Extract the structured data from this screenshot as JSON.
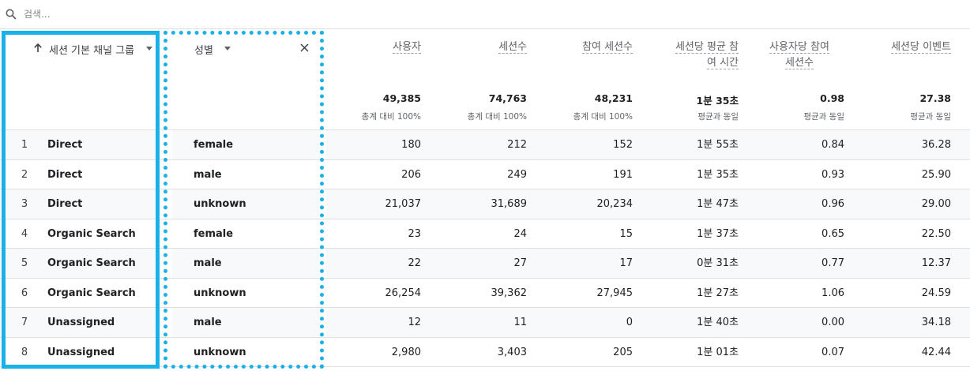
{
  "search": {
    "placeholder": "검색..."
  },
  "colors": {
    "accent": "#1ab0e8",
    "row_shade": "#f8f9fa",
    "border": "#e0e0e0"
  },
  "dimensions": {
    "primary": {
      "label": "세션 기본 채널 그룹",
      "sort_icon": "arrow-up-icon",
      "dropdown_icon": "caret-down-icon"
    },
    "secondary": {
      "label": "성별",
      "dropdown_icon": "caret-down-icon",
      "remove_icon": "close-icon"
    }
  },
  "metrics": [
    {
      "title_line1": "사용자",
      "title_line2": "",
      "total": "49,385",
      "sub": "총계 대비 100%"
    },
    {
      "title_line1": "세션수",
      "title_line2": "",
      "total": "74,763",
      "sub": "총계 대비 100%"
    },
    {
      "title_line1": "참여 세션수",
      "title_line2": "",
      "total": "48,231",
      "sub": "총계 대비 100%"
    },
    {
      "title_line1": "세션당 평균 참",
      "title_line2": "여 시간",
      "total": "1분 35초",
      "sub": "평균과 동일"
    },
    {
      "title_line1": "사용자당 참여",
      "title_line2": "세션수",
      "total": "0.98",
      "sub": "평균과 동일"
    },
    {
      "title_line1": "세션당 이벤트",
      "title_line2": "",
      "total": "27.38",
      "sub": "평균과 동일"
    }
  ],
  "rows": [
    {
      "idx": "1",
      "channel": "Direct",
      "gender": "female",
      "users": "180",
      "sessions": "212",
      "engaged": "152",
      "avg_time": "1분 55초",
      "per_user": "0.84",
      "events": "36.28"
    },
    {
      "idx": "2",
      "channel": "Direct",
      "gender": "male",
      "users": "206",
      "sessions": "249",
      "engaged": "191",
      "avg_time": "1분 35초",
      "per_user": "0.93",
      "events": "25.90"
    },
    {
      "idx": "3",
      "channel": "Direct",
      "gender": "unknown",
      "users": "21,037",
      "sessions": "31,689",
      "engaged": "20,234",
      "avg_time": "1분 47초",
      "per_user": "0.96",
      "events": "29.00"
    },
    {
      "idx": "4",
      "channel": "Organic Search",
      "gender": "female",
      "users": "23",
      "sessions": "24",
      "engaged": "15",
      "avg_time": "1분 37초",
      "per_user": "0.65",
      "events": "22.50"
    },
    {
      "idx": "5",
      "channel": "Organic Search",
      "gender": "male",
      "users": "22",
      "sessions": "27",
      "engaged": "17",
      "avg_time": "0분 31초",
      "per_user": "0.77",
      "events": "12.37"
    },
    {
      "idx": "6",
      "channel": "Organic Search",
      "gender": "unknown",
      "users": "26,254",
      "sessions": "39,362",
      "engaged": "27,945",
      "avg_time": "1분 27초",
      "per_user": "1.06",
      "events": "24.59"
    },
    {
      "idx": "7",
      "channel": "Unassigned",
      "gender": "male",
      "users": "12",
      "sessions": "11",
      "engaged": "0",
      "avg_time": "1분 40초",
      "per_user": "0.00",
      "events": "34.18"
    },
    {
      "idx": "8",
      "channel": "Unassigned",
      "gender": "unknown",
      "users": "2,980",
      "sessions": "3,403",
      "engaged": "205",
      "avg_time": "1분 01초",
      "per_user": "0.07",
      "events": "42.44"
    }
  ]
}
